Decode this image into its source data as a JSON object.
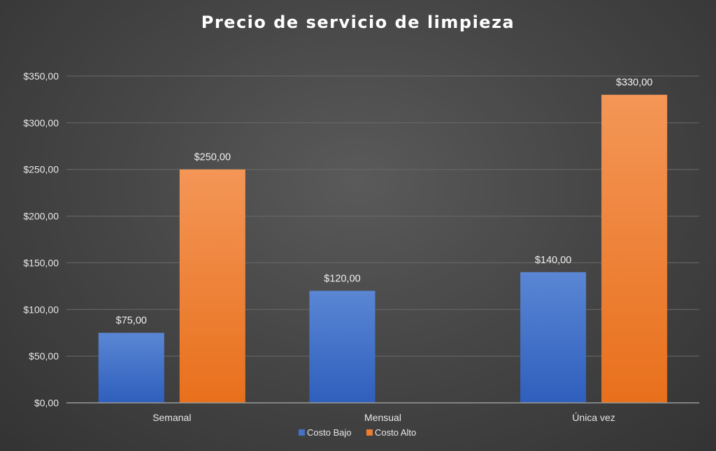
{
  "chart_data": {
    "type": "bar",
    "title": "Precio de servicio de limpieza",
    "categories": [
      "Semanal",
      "Mensual",
      "Única vez"
    ],
    "series": [
      {
        "name": "Costo Bajo",
        "values": [
          75,
          120,
          140
        ],
        "labels": [
          "$75,00",
          "$120,00",
          "$140,00"
        ]
      },
      {
        "name": "Costo Alto",
        "values": [
          250,
          null,
          330
        ],
        "labels": [
          "$250,00",
          "",
          "$330,00"
        ]
      }
    ],
    "y_ticks": [
      0,
      50,
      100,
      150,
      200,
      250,
      300,
      350
    ],
    "y_tick_labels": [
      "$0,00",
      "$50,00",
      "$100,00",
      "$150,00",
      "$200,00",
      "$250,00",
      "$300,00",
      "$350,00"
    ],
    "ylim": [
      0,
      350
    ],
    "grid": true,
    "legend_position": "bottom",
    "colors": {
      "Costo Bajo": {
        "top": "#5a86d4",
        "bottom": "#2f5fbd",
        "legend": "#4472c4"
      },
      "Costo Alto": {
        "top": "#f49657",
        "bottom": "#e8701c",
        "legend": "#ed7d31"
      }
    }
  }
}
